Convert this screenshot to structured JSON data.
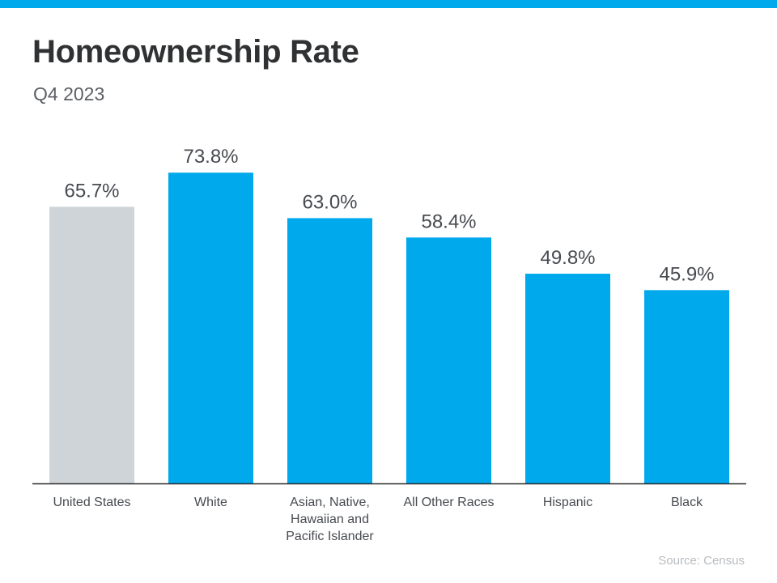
{
  "header": {
    "title": "Homeownership Rate",
    "subtitle": "Q4 2023"
  },
  "footer": {
    "source": "Source: Census"
  },
  "colors": {
    "stripe": "#00a9ec",
    "highlight_bar": "#00a9ec",
    "baseline_bar": "#cfd4d8",
    "value_label": "#474b50",
    "category_label": "#474b50",
    "axis": "#2b2b2b"
  },
  "chart_data": {
    "type": "bar",
    "title": "Homeownership Rate",
    "subtitle": "Q4 2023",
    "categories": [
      [
        "United States"
      ],
      [
        "White"
      ],
      [
        "Asian, Native,",
        "Hawaiian and",
        "Pacific Islander"
      ],
      [
        "All Other Races"
      ],
      [
        "Hispanic"
      ],
      [
        "Black"
      ]
    ],
    "values": [
      65.7,
      73.8,
      63.0,
      58.4,
      49.8,
      45.9
    ],
    "value_labels": [
      "65.7%",
      "73.8%",
      "63.0%",
      "58.4%",
      "49.8%",
      "45.9%"
    ],
    "bar_colors": [
      "#cfd4d8",
      "#00a9ec",
      "#00a9ec",
      "#00a9ec",
      "#00a9ec",
      "#00a9ec"
    ],
    "ylim": [
      0,
      75
    ],
    "y_axis_visible": false,
    "grid": false,
    "legend": "none"
  }
}
